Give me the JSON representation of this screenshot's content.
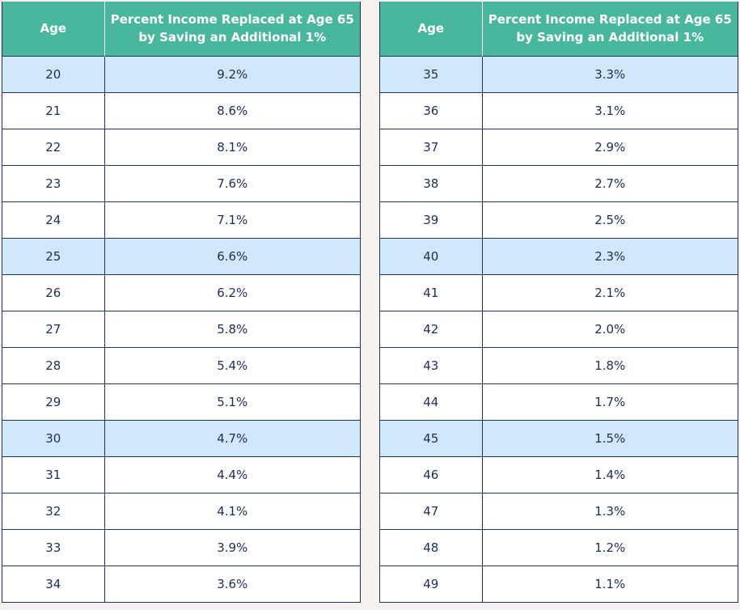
{
  "colors": {
    "header_bg": "#48b79d",
    "header_text": "#ffffff",
    "highlight_row": "#cfe9fa",
    "body_text": "#1e2d55",
    "grid_line": "#22325c",
    "page_bg": "#f4f1ef"
  },
  "chart_data": {
    "type": "table",
    "tables": [
      {
        "columns": [
          "Age",
          "Percent Income Replaced at Age 65 by Saving an Additional 1%"
        ],
        "rows": [
          {
            "age": "20",
            "value": "9.2%",
            "highlight": true
          },
          {
            "age": "21",
            "value": "8.6%",
            "highlight": false
          },
          {
            "age": "22",
            "value": "8.1%",
            "highlight": false
          },
          {
            "age": "23",
            "value": "7.6%",
            "highlight": false
          },
          {
            "age": "24",
            "value": "7.1%",
            "highlight": false
          },
          {
            "age": "25",
            "value": "6.6%",
            "highlight": true
          },
          {
            "age": "26",
            "value": "6.2%",
            "highlight": false
          },
          {
            "age": "27",
            "value": "5.8%",
            "highlight": false
          },
          {
            "age": "28",
            "value": "5.4%",
            "highlight": false
          },
          {
            "age": "29",
            "value": "5.1%",
            "highlight": false
          },
          {
            "age": "30",
            "value": "4.7%",
            "highlight": true
          },
          {
            "age": "31",
            "value": "4.4%",
            "highlight": false
          },
          {
            "age": "32",
            "value": "4.1%",
            "highlight": false
          },
          {
            "age": "33",
            "value": "3.9%",
            "highlight": false
          },
          {
            "age": "34",
            "value": "3.6%",
            "highlight": false
          }
        ]
      },
      {
        "columns": [
          "Age",
          "Percent Income Replaced at Age 65 by Saving an Additional 1%"
        ],
        "rows": [
          {
            "age": "35",
            "value": "3.3%",
            "highlight": true
          },
          {
            "age": "36",
            "value": "3.1%",
            "highlight": false
          },
          {
            "age": "37",
            "value": "2.9%",
            "highlight": false
          },
          {
            "age": "38",
            "value": "2.7%",
            "highlight": false
          },
          {
            "age": "39",
            "value": "2.5%",
            "highlight": false
          },
          {
            "age": "40",
            "value": "2.3%",
            "highlight": true
          },
          {
            "age": "41",
            "value": "2.1%",
            "highlight": false
          },
          {
            "age": "42",
            "value": "2.0%",
            "highlight": false
          },
          {
            "age": "43",
            "value": "1.8%",
            "highlight": false
          },
          {
            "age": "44",
            "value": "1.7%",
            "highlight": false
          },
          {
            "age": "45",
            "value": "1.5%",
            "highlight": true
          },
          {
            "age": "46",
            "value": "1.4%",
            "highlight": false
          },
          {
            "age": "47",
            "value": "1.3%",
            "highlight": false
          },
          {
            "age": "48",
            "value": "1.2%",
            "highlight": false
          },
          {
            "age": "49",
            "value": "1.1%",
            "highlight": false
          }
        ]
      }
    ]
  }
}
